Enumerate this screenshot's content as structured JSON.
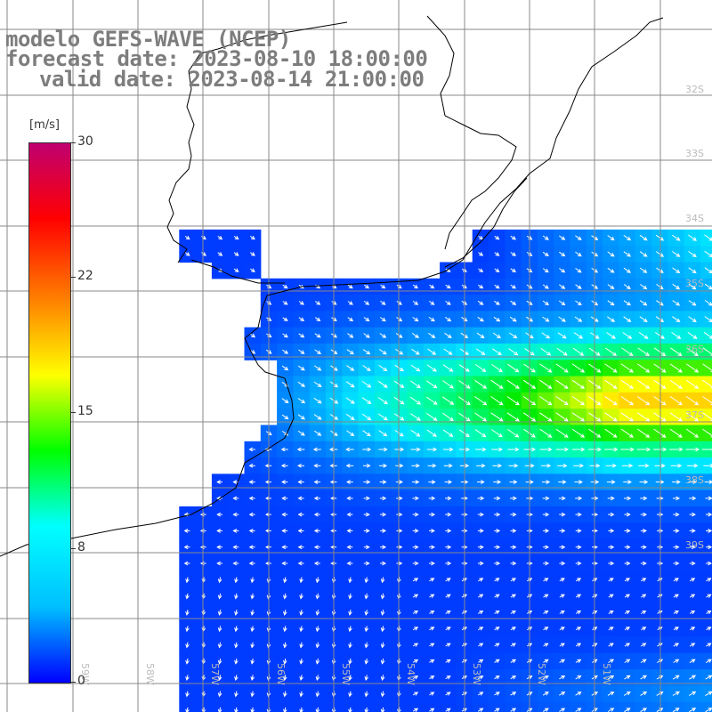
{
  "title": {
    "line1": "modelo GEFS-WAVE (NCEP)",
    "line2": "forecast date: 2023-08-10 18:00:00",
    "line3": "valid date: 2023-08-14 21:00:00"
  },
  "colorbar": {
    "unit": "[m/s]",
    "ticks": [
      "30",
      "22",
      "15",
      "8",
      "0"
    ],
    "colors": [
      "#0000ff",
      "#00bfff",
      "#00ffff",
      "#00ff00",
      "#ffff00",
      "#ff8000",
      "#ff0000",
      "#c00070"
    ]
  },
  "grid": {
    "lat_labels": [
      "32S",
      "33S",
      "34S",
      "35S",
      "36S",
      "37S",
      "38S",
      "39S"
    ],
    "lon_labels": [
      "59W",
      "58W",
      "57W",
      "56W",
      "55W",
      "54W",
      "53W",
      "52W",
      "51W"
    ]
  },
  "colors": {
    "land": "#ffffff",
    "coast": "#000000",
    "gridline": "#888888",
    "arrow": "#ffffff"
  }
}
